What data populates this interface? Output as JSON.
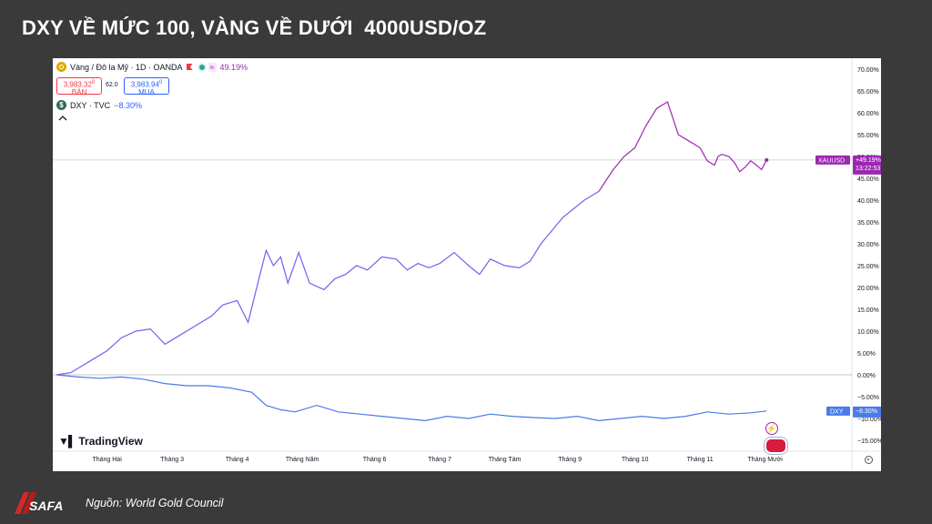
{
  "slide": {
    "title": "DXY VỀ MỨC 100, VÀNG VỀ DƯỚI  4000USD/OZ",
    "footer_source": "Nguồn: World Gold Council",
    "logo_text": "SAFA"
  },
  "tradingview": {
    "brand": "TradingView",
    "symbol1": {
      "label": "Vàng / Đô la Mỹ · 1D · OANDA",
      "change": "49.19%",
      "sell_price": "3,983.32",
      "sell_sup": "0",
      "sell_label": "BÁN",
      "spread": "62.0",
      "buy_price": "3,983.94",
      "buy_sup": "0",
      "buy_label": "MUA",
      "price_tag_name": "XAUUSD",
      "price_tag_change": "+49.19%",
      "price_tag_time": "13:22:53"
    },
    "symbol2": {
      "icon_text": "$",
      "label": "DXY · TVC",
      "change": "−8.30%",
      "price_tag_name": "DXY",
      "price_tag_change": "−8.30%"
    }
  },
  "colors": {
    "gold_line": "#7b5cf0",
    "gold_line_recent": "#9c27b0",
    "dxy_line": "#4a7be8",
    "slide_bg": "#3a3a3a",
    "panel_bg": "#ffffff"
  },
  "chart_data": {
    "type": "line",
    "percent_scale": true,
    "x_tick_labels": [
      "Tháng Hai",
      "Tháng 3",
      "Tháng 4",
      "Tháng Năm",
      "Tháng 6",
      "Tháng 7",
      "Tháng Tám",
      "Tháng 9",
      "Tháng 10",
      "Tháng 11",
      "Tháng Mười"
    ],
    "ylim": [
      -17.5,
      72.5
    ],
    "y_ticks": [
      70,
      65,
      60,
      55,
      50,
      45,
      40,
      35,
      30,
      25,
      20,
      15,
      10,
      5,
      0,
      -5,
      -10,
      -15
    ],
    "y_tick_labels": [
      "70.00%",
      "65.00%",
      "60.00%",
      "55.00%",
      "50.00%",
      "45.00%",
      "40.00%",
      "35.00%",
      "30.00%",
      "25.00%",
      "20.00%",
      "15.00%",
      "10.00%",
      "5.00%",
      "0.00%",
      "−5.00%",
      "−10.00%",
      "−15.00%"
    ],
    "x_range": [
      0,
      11
    ],
    "series": [
      {
        "name": "Vàng / Đô la Mỹ · 1D · OANDA",
        "x": [
          0,
          0.2,
          0.35,
          0.5,
          0.7,
          0.9,
          1.1,
          1.3,
          1.5,
          1.7,
          1.85,
          2.0,
          2.15,
          2.3,
          2.5,
          2.65,
          2.8,
          2.9,
          3.0,
          3.1,
          3.2,
          3.35,
          3.5,
          3.7,
          3.85,
          4.0,
          4.15,
          4.3,
          4.5,
          4.7,
          4.85,
          5.0,
          5.15,
          5.3,
          5.5,
          5.7,
          5.85,
          6.0,
          6.2,
          6.4,
          6.55,
          6.7,
          6.85,
          7.0,
          7.15,
          7.3,
          7.5,
          7.7,
          7.85,
          8.0,
          8.15,
          8.3,
          8.45,
          8.6,
          8.75,
          8.9,
          9.0,
          9.1,
          9.15,
          9.2,
          9.3,
          9.38,
          9.45,
          9.52,
          9.6,
          9.68,
          9.75,
          9.82
        ],
        "values": [
          0,
          0.5,
          2.0,
          3.5,
          5.5,
          8.5,
          10.0,
          10.5,
          7.0,
          9.0,
          10.5,
          12.0,
          13.5,
          16.0,
          17.0,
          12.0,
          22.0,
          28.5,
          25.0,
          27.0,
          21.0,
          28.0,
          21.0,
          19.5,
          22.0,
          23.0,
          25.0,
          24.0,
          27.0,
          26.5,
          24.0,
          25.5,
          24.5,
          25.5,
          28.0,
          25.0,
          23.0,
          26.5,
          25.0,
          24.5,
          26.0,
          30.0,
          33.0,
          36.0,
          38.0,
          40.0,
          42.0,
          47.0,
          50.0,
          52.0,
          57.0,
          61.0,
          62.5,
          55.0,
          53.5,
          52.0,
          49.0,
          48.0,
          50.0,
          50.5,
          50.0,
          48.5,
          46.5,
          47.5,
          49.0,
          48.0,
          47.0,
          49.2
        ]
      },
      {
        "name": "DXY · TVC",
        "x": [
          0,
          0.3,
          0.6,
          0.9,
          1.2,
          1.5,
          1.8,
          2.1,
          2.4,
          2.7,
          2.9,
          3.1,
          3.3,
          3.6,
          3.9,
          4.2,
          4.5,
          4.8,
          5.1,
          5.4,
          5.7,
          6.0,
          6.3,
          6.6,
          6.9,
          7.2,
          7.5,
          7.8,
          8.1,
          8.4,
          8.7,
          9.0,
          9.3,
          9.6,
          9.82
        ],
        "values": [
          0,
          -0.5,
          -0.8,
          -0.5,
          -1.0,
          -2.0,
          -2.5,
          -2.5,
          -3.0,
          -4.0,
          -7.0,
          -8.0,
          -8.5,
          -7.0,
          -8.5,
          -9.0,
          -9.5,
          -10.0,
          -10.5,
          -9.5,
          -10.0,
          -9.0,
          -9.5,
          -9.8,
          -10.0,
          -9.5,
          -10.5,
          -10.0,
          -9.5,
          -10.0,
          -9.5,
          -8.5,
          -9.0,
          -8.7,
          -8.3
        ]
      }
    ],
    "current_values": {
      "gold": 49.19,
      "dxy": -8.3
    }
  }
}
